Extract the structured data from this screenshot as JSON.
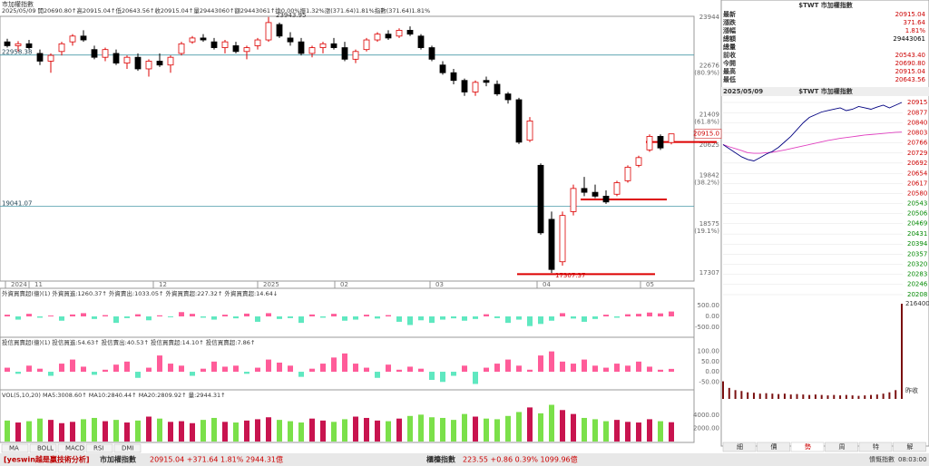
{
  "header": {
    "title": "市加權指數",
    "info": "2025/05/09 開20690.80↑高20915.04↑低20643.56↑收20915.04↑量29443060↑額29443061↑換0.00%振1.32%漲(371.64)1.81%指數(371.64)1.81%"
  },
  "main": {
    "ylim": [
      17100,
      24150
    ],
    "yticks": [
      23944,
      22676,
      21409,
      20625,
      19842,
      18575,
      17307
    ],
    "fib_labels": [
      {
        "value": 22676,
        "label": "(80.9%)"
      },
      {
        "value": 21409,
        "label": "(61.8%)"
      },
      {
        "value": 19842,
        "label": "(38.2%)"
      },
      {
        "value": 18575,
        "label": "(19.1%)"
      }
    ],
    "last_label": {
      "value": 20915.04,
      "label": "20915.0"
    },
    "high_label": 23943.95,
    "low_label": 17307.37,
    "levels": [
      22958.38,
      19041.07
    ],
    "support_lines": [
      20705,
      19215,
      17280
    ],
    "x_labels": [
      "2024",
      "11",
      "12",
      "2025",
      "02",
      "03",
      "04",
      "05"
    ],
    "candles": [
      [
        23300,
        23380,
        23150,
        23200
      ],
      [
        23200,
        23320,
        23050,
        23250
      ],
      [
        23250,
        23350,
        23100,
        23150
      ],
      [
        23000,
        23100,
        22700,
        22800
      ],
      [
        22800,
        23000,
        22500,
        22950
      ],
      [
        23050,
        23300,
        22950,
        23250
      ],
      [
        23300,
        23500,
        23200,
        23450
      ],
      [
        23450,
        23600,
        23300,
        23350
      ],
      [
        23100,
        23200,
        22850,
        22900
      ],
      [
        22900,
        23150,
        22800,
        23100
      ],
      [
        23000,
        23100,
        22700,
        22750
      ],
      [
        22750,
        22950,
        22600,
        22900
      ],
      [
        22900,
        23000,
        22550,
        22600
      ],
      [
        22600,
        22850,
        22400,
        22800
      ],
      [
        22800,
        23000,
        22650,
        22700
      ],
      [
        22700,
        22950,
        22500,
        22900
      ],
      [
        23000,
        23300,
        22950,
        23250
      ],
      [
        23300,
        23450,
        23250,
        23400
      ],
      [
        23400,
        23500,
        23300,
        23350
      ],
      [
        23300,
        23400,
        23100,
        23150
      ],
      [
        23150,
        23350,
        23000,
        23300
      ],
      [
        23200,
        23300,
        23000,
        23050
      ],
      [
        23050,
        23200,
        22850,
        23150
      ],
      [
        23200,
        23400,
        23100,
        23350
      ],
      [
        23350,
        23943.95,
        23300,
        23800
      ],
      [
        23750,
        23800,
        23400,
        23450
      ],
      [
        23400,
        23550,
        23200,
        23300
      ],
      [
        23300,
        23400,
        22950,
        23000
      ],
      [
        23000,
        23200,
        22900,
        23150
      ],
      [
        23150,
        23300,
        23000,
        23250
      ],
      [
        23250,
        23400,
        23100,
        23150
      ],
      [
        23150,
        23300,
        22800,
        22850
      ],
      [
        22850,
        23100,
        22750,
        23050
      ],
      [
        23100,
        23400,
        23050,
        23350
      ],
      [
        23350,
        23550,
        23300,
        23500
      ],
      [
        23500,
        23600,
        23350,
        23400
      ],
      [
        23450,
        23650,
        23400,
        23600
      ],
      [
        23600,
        23700,
        23450,
        23500
      ],
      [
        23450,
        23500,
        23100,
        23150
      ],
      [
        23150,
        23200,
        22800,
        22850
      ],
      [
        22700,
        22800,
        22450,
        22500
      ],
      [
        22500,
        22600,
        22200,
        22300
      ],
      [
        22300,
        22350,
        21900,
        22000
      ],
      [
        22000,
        22300,
        21900,
        22250
      ],
      [
        22300,
        22400,
        22150,
        22250
      ],
      [
        22200,
        22300,
        21900,
        21950
      ],
      [
        21950,
        22000,
        21700,
        21800
      ],
      [
        21800,
        21850,
        20650,
        20700
      ],
      [
        20750,
        21350,
        20700,
        21250
      ],
      [
        20100,
        20150,
        18300,
        18350
      ],
      [
        18700,
        18900,
        17307.37,
        17400
      ],
      [
        17600,
        18900,
        17500,
        18800
      ],
      [
        18900,
        19600,
        18800,
        19500
      ],
      [
        19500,
        19800,
        19300,
        19400
      ],
      [
        19400,
        19600,
        19250,
        19300
      ],
      [
        19300,
        19450,
        19100,
        19150
      ],
      [
        19350,
        19700,
        19300,
        19650
      ],
      [
        19700,
        20100,
        19650,
        20050
      ],
      [
        20100,
        20350,
        20050,
        20300
      ],
      [
        20500,
        20900,
        20450,
        20850
      ],
      [
        20850,
        20900,
        20500,
        20550
      ],
      [
        20690.8,
        20915.04,
        20643.56,
        20915.04
      ]
    ]
  },
  "foreign": {
    "label": "外資買賣超(億)(1) 外資買進:1260.37↑ 外資賣出:1033.05↑ 外資買賣超:227.32↑ 外資買賣超:14.64↓",
    "ylim": [
      -800,
      800
    ],
    "yticks": [
      {
        "value": 500,
        "label": "500.00"
      },
      {
        "value": 0,
        "label": "0.00"
      },
      {
        "value": -500,
        "label": "-500.00"
      }
    ],
    "values": [
      80,
      -150,
      120,
      -60,
      40,
      -200,
      90,
      150,
      -120,
      60,
      -300,
      -80,
      100,
      -180,
      50,
      -40,
      200,
      120,
      -60,
      -150,
      80,
      -90,
      130,
      -250,
      150,
      -120,
      -80,
      -300,
      90,
      -60,
      120,
      -200,
      -150,
      80,
      -100,
      60,
      -250,
      -400,
      -180,
      -300,
      -150,
      -90,
      -200,
      -120,
      100,
      -80,
      -300,
      -150,
      -450,
      -350,
      -200,
      150,
      -100,
      -250,
      -120,
      80,
      -60,
      100,
      120,
      180,
      140,
      227.32
    ]
  },
  "trust": {
    "label": "投信買賣超(億)(1) 投信買進:54.63↑ 投信賣出:40.53↑ 投信買賣超:14.10↑ 投信買賣超:7.86↑",
    "ylim": [
      -80,
      125
    ],
    "yticks": [
      {
        "value": 100,
        "label": "100.00"
      },
      {
        "value": 50,
        "label": "50.00"
      },
      {
        "value": 0,
        "label": "0.00"
      },
      {
        "value": -50,
        "label": "-50.00"
      }
    ],
    "values": [
      20,
      -10,
      30,
      15,
      -20,
      40,
      60,
      25,
      -15,
      10,
      35,
      50,
      -30,
      20,
      80,
      40,
      30,
      -20,
      15,
      50,
      25,
      30,
      -10,
      20,
      60,
      45,
      30,
      -25,
      15,
      40,
      70,
      90,
      40,
      20,
      -30,
      35,
      10,
      25,
      15,
      -40,
      -50,
      -20,
      30,
      -60,
      20,
      40,
      60,
      30,
      10,
      80,
      100,
      50,
      40,
      60,
      30,
      20,
      40,
      30,
      50,
      25,
      10,
      14.1
    ]
  },
  "volume": {
    "label": "VOL(5,10,20) MA5:3008.60↑ MA10:2840.44↑ MA20:2809.92↑ 量:2944.31↑",
    "ylim": [
      0,
      6500
    ],
    "yticks": [
      {
        "value": 4000,
        "label": "4000.00"
      },
      {
        "value": 2000,
        "label": "2000.00"
      }
    ],
    "values": [
      3200,
      2900,
      3100,
      3500,
      3300,
      2800,
      3000,
      3400,
      3600,
      3100,
      3300,
      2900,
      3200,
      3800,
      3500,
      3000,
      3100,
      2800,
      3300,
      3600,
      3000,
      2900,
      3200,
      3400,
      3700,
      3300,
      3100,
      2900,
      3500,
      3200,
      3000,
      3400,
      3800,
      3600,
      3200,
      3100,
      3500,
      3900,
      4100,
      3700,
      3600,
      3300,
      4200,
      3800,
      3500,
      3400,
      3900,
      4500,
      5200,
      4300,
      5600,
      4800,
      4200,
      3600,
      3400,
      3100,
      3300,
      3000,
      2900,
      3400,
      3100,
      2944.31
    ]
  },
  "indicator_tabs": [
    "MA",
    "BOLL",
    "MACD",
    "RSI",
    "DMI"
  ],
  "quote": {
    "title": "$TWT 市加權指數",
    "rows": [
      [
        "最新",
        "20915.04"
      ],
      [
        "漲跌",
        "371.64"
      ],
      [
        "漲幅",
        "1.81%"
      ],
      [
        "總額",
        "29443061"
      ],
      [
        "總量"
      ],
      [
        "前收",
        "20543.40"
      ],
      [
        "今開",
        "20690.80"
      ],
      [
        "最高",
        "20915.04"
      ],
      [
        "最低",
        "20643.56"
      ]
    ]
  },
  "intraday": {
    "date": "2025/05/09",
    "title": "$TWT 市加權指數",
    "ylim": [
      20208,
      20915
    ],
    "yticks": [
      20915,
      20877,
      20840,
      20803,
      20766,
      20729,
      20692,
      20654,
      20617,
      20580,
      20543,
      20506,
      20469,
      20431,
      20394,
      20357,
      20320,
      20283,
      20246,
      20208
    ],
    "price": [
      20760,
      20745,
      20730,
      20715,
      20705,
      20700,
      20712,
      20725,
      20735,
      20750,
      20770,
      20790,
      20815,
      20840,
      20860,
      20870,
      20880,
      20885,
      20890,
      20895,
      20885,
      20890,
      20900,
      20895,
      20890,
      20898,
      20905,
      20895,
      20905,
      20915
    ],
    "avg": [
      20760,
      20752,
      20745,
      20738,
      20730,
      20728,
      20728,
      20730,
      20732,
      20736,
      20740,
      20745,
      20750,
      20755,
      20760,
      20765,
      20770,
      20775,
      20779,
      20783,
      20786,
      20789,
      20792,
      20795,
      20797,
      20799,
      20801,
      20803,
      20805,
      20806
    ],
    "volume": [
      40000,
      25000,
      20000,
      18000,
      15000,
      14000,
      12000,
      13000,
      12000,
      11000,
      12000,
      10000,
      11000,
      10000,
      9000,
      10000,
      9000,
      8000,
      9000,
      8000,
      9000,
      8000,
      7000,
      8000,
      9000,
      10000,
      12000,
      15000,
      20000,
      216400
    ],
    "vol_max": 216400,
    "close_label": "昨收"
  },
  "tabs": [
    "細",
    "價",
    "勢",
    "周",
    "特",
    "解"
  ],
  "status": {
    "brand": "[yeswin越是贏技術分析]",
    "index1_name": "市加權指數",
    "index1": "20915.04 +371.64 1.81% 2944.31億",
    "index2_name": "櫃檯指數",
    "index2": "223.55 +0.86 0.39% 1099.96億",
    "right": "憤慨指數",
    "time": "08:03:00"
  }
}
